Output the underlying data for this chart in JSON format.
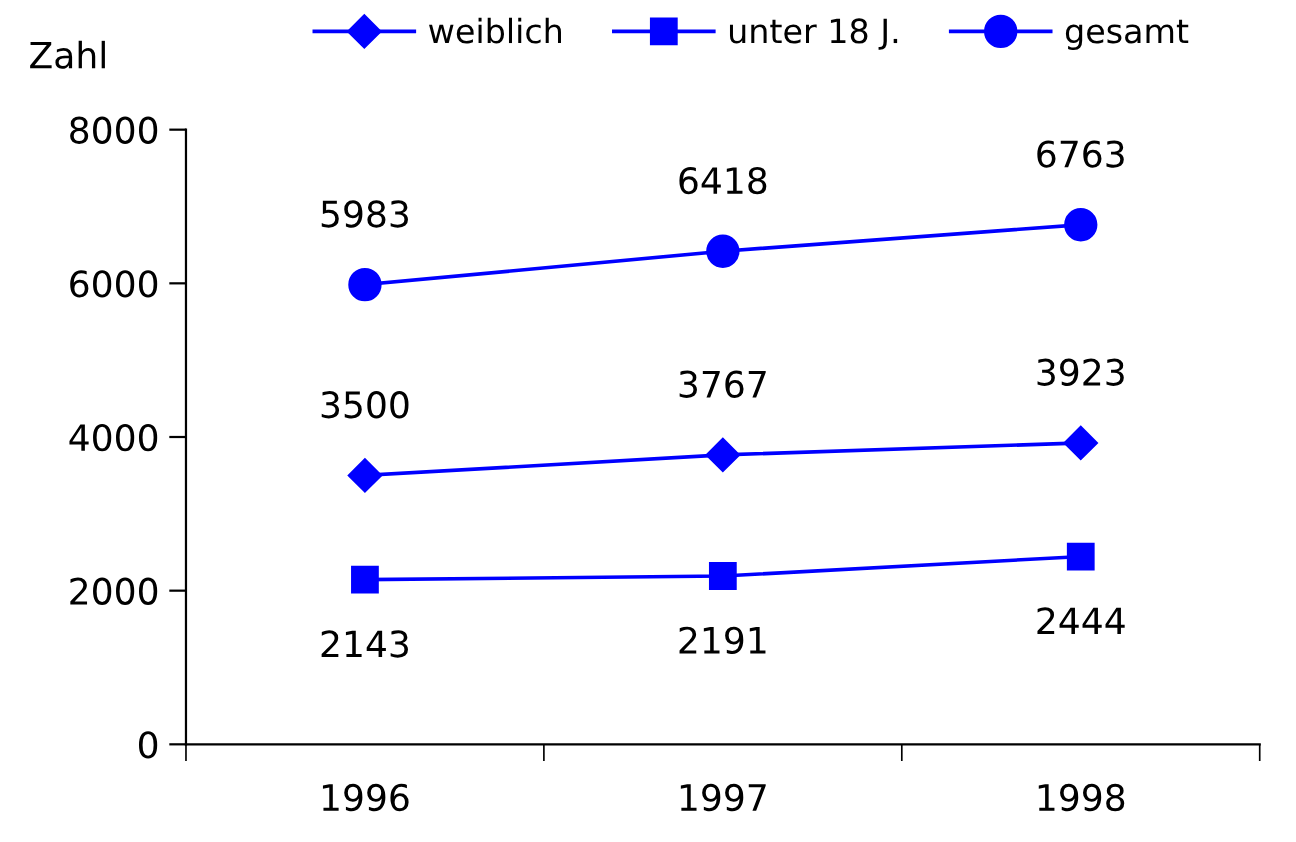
{
  "chart_data": {
    "type": "line",
    "ylabel": "Zahl",
    "categories": [
      "1996",
      "1997",
      "1998"
    ],
    "series": [
      {
        "name": "weiblich",
        "color": "#0000ff",
        "marker": "diamond",
        "values": [
          3500,
          3767,
          3923
        ]
      },
      {
        "name": "unter 18 J.",
        "color": "#0000ff",
        "marker": "square",
        "values": [
          2143,
          2191,
          2444
        ]
      },
      {
        "name": "gesamt",
        "color": "#0000ff",
        "marker": "circle",
        "values": [
          5983,
          6418,
          6763
        ]
      }
    ],
    "ylim": [
      0,
      8000
    ],
    "yticks": [
      0,
      2000,
      4000,
      6000,
      8000
    ],
    "data_labels": true,
    "legend": "top",
    "grid": false,
    "line_style": "solid"
  }
}
